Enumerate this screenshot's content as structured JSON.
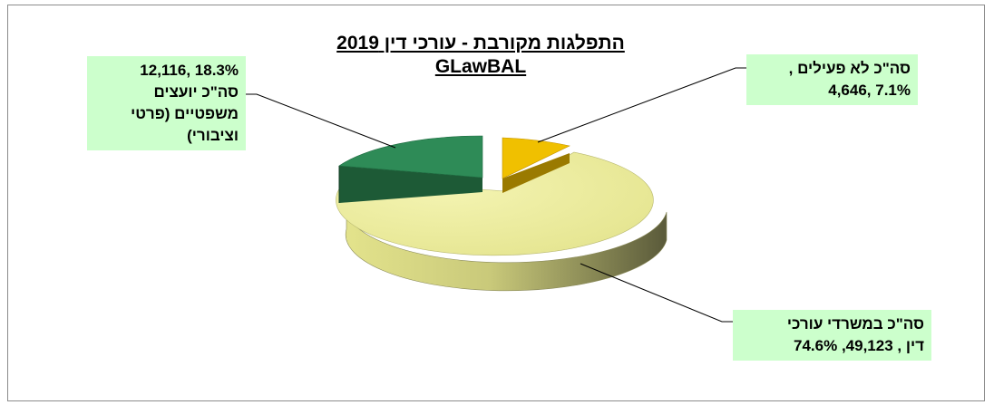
{
  "chart_data": {
    "type": "pie",
    "title": "התפלגות מקורבת - עורכי דין 2019",
    "subtitle": "GLawBAL",
    "slices": [
      {
        "label_lines": [
          "סה\"כ לא פעילים ,",
          "7.1% ,4,646"
        ],
        "count": 4646,
        "percent": 7.1,
        "color": "#f0c000"
      },
      {
        "label_lines": [
          "סה\"כ במשרדי  עורכי",
          "דין , 49,123, 74.6%"
        ],
        "count": 49123,
        "percent": 74.6,
        "color": "#eeee9a"
      },
      {
        "label_lines": [
          "18.3% ,12,116",
          "סה\"כ יועצים",
          "משפטיים (פרטי",
          "וציבורי)"
        ],
        "count": 12116,
        "percent": 18.3,
        "color": "#2e8b57"
      }
    ],
    "style": "3d-exploded"
  }
}
